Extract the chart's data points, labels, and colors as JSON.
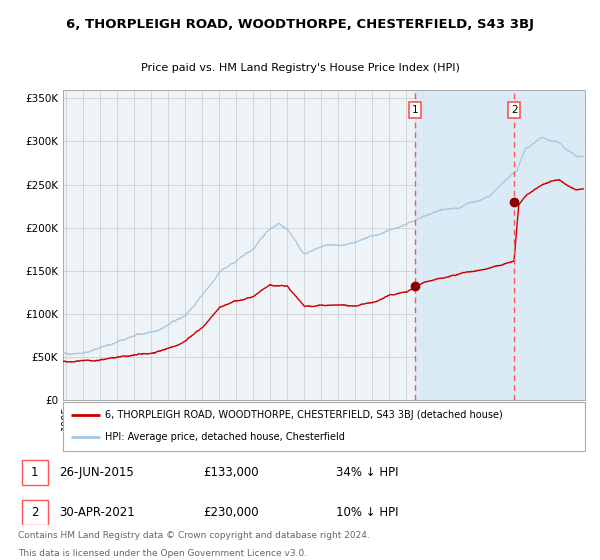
{
  "title": "6, THORPLEIGH ROAD, WOODTHORPE, CHESTERFIELD, S43 3BJ",
  "subtitle": "Price paid vs. HM Land Registry's House Price Index (HPI)",
  "legend_line1": "6, THORPLEIGH ROAD, WOODTHORPE, CHESTERFIELD, S43 3BJ (detached house)",
  "legend_line2": "HPI: Average price, detached house, Chesterfield",
  "transaction1_date": "26-JUN-2015",
  "transaction1_price": 133000,
  "transaction1_hpi": "34% ↓ HPI",
  "transaction2_date": "30-APR-2021",
  "transaction2_price": 230000,
  "transaction2_hpi": "10% ↓ HPI",
  "footnote1": "Contains HM Land Registry data © Crown copyright and database right 2024.",
  "footnote2": "This data is licensed under the Open Government Licence v3.0.",
  "hpi_color": "#A8C8E0",
  "price_color": "#CC0000",
  "marker_color": "#8B0000",
  "vline_color": "#FF5555",
  "shade_color": "#D8EAF5",
  "bg_color": "#EEF3F8",
  "grid_color": "#C8C8C8",
  "ylim": [
    0,
    360000
  ],
  "xlim_start": 1994.8,
  "xlim_end": 2025.5,
  "transaction1_x": 2015.49,
  "transaction2_x": 2021.33,
  "yticks": [
    0,
    50000,
    100000,
    150000,
    200000,
    250000,
    300000,
    350000
  ],
  "ylabels": [
    "£0",
    "£50K",
    "£100K",
    "£150K",
    "£200K",
    "£250K",
    "£300K",
    "£350K"
  ]
}
